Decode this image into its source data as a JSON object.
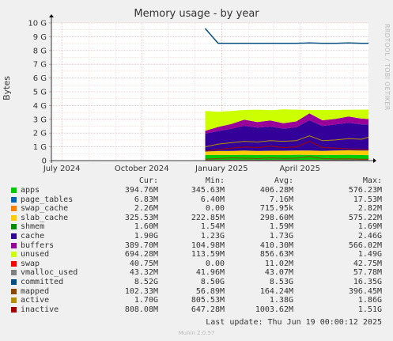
{
  "header": {
    "title": "Memory usage - by year",
    "sidelabel": "RRDTOOL / TOBI OETIKER",
    "ylabel": "Bytes"
  },
  "legend_headers": {
    "cur": "Cur:",
    "min": "Min:",
    "avg": "Avg:",
    "max": "Max:"
  },
  "legend": [
    {
      "name": "apps",
      "color": "#00cc00",
      "cur": "394.76M",
      "min": "345.63M",
      "avg": "406.28M",
      "max": "576.23M"
    },
    {
      "name": "page_tables",
      "color": "#0066b3",
      "cur": "6.83M",
      "min": "6.40M",
      "avg": "7.16M",
      "max": "17.53M"
    },
    {
      "name": "swap_cache",
      "color": "#ff8000",
      "cur": "2.26M",
      "min": "0.00",
      "avg": "715.95k",
      "max": "2.82M"
    },
    {
      "name": "slab_cache",
      "color": "#ffcc00",
      "cur": "325.53M",
      "min": "222.85M",
      "avg": "298.60M",
      "max": "575.22M"
    },
    {
      "name": "shmem",
      "color": "#008f00",
      "cur": "1.60M",
      "min": "1.54M",
      "avg": "1.59M",
      "max": "1.69M"
    },
    {
      "name": "cache",
      "color": "#330099",
      "cur": "1.90G",
      "min": "1.23G",
      "avg": "1.73G",
      "max": "2.46G"
    },
    {
      "name": "buffers",
      "color": "#990099",
      "cur": "389.70M",
      "min": "104.98M",
      "avg": "410.30M",
      "max": "566.02M"
    },
    {
      "name": "unused",
      "color": "#ccff00",
      "cur": "694.28M",
      "min": "113.59M",
      "avg": "856.63M",
      "max": "1.49G"
    },
    {
      "name": "swap",
      "color": "#ff0000",
      "cur": "40.75M",
      "min": "0.00",
      "avg": "11.02M",
      "max": "42.75M"
    },
    {
      "name": "vmalloc_used",
      "color": "#808080",
      "cur": "43.32M",
      "min": "41.96M",
      "avg": "43.07M",
      "max": "57.78M"
    },
    {
      "name": "committed",
      "color": "#004d80",
      "cur": "8.52G",
      "min": "8.50G",
      "avg": "8.53G",
      "max": "16.35G"
    },
    {
      "name": "mapped",
      "color": "#8c4600",
      "cur": "102.33M",
      "min": "56.89M",
      "avg": "164.24M",
      "max": "396.45M"
    },
    {
      "name": "active",
      "color": "#b38f00",
      "cur": "1.70G",
      "min": "805.53M",
      "avg": "1.38G",
      "max": "1.86G"
    },
    {
      "name": "inactive",
      "color": "#a60000",
      "cur": "808.08M",
      "min": "647.28M",
      "avg": "1003.62M",
      "max": "1.51G"
    }
  ],
  "footer": {
    "last_update": "Last update: Thu Jun 19 00:00:12 2025",
    "version": "Munin 2.0.57"
  },
  "chart_data": {
    "type": "area",
    "title": "Memory usage - by year",
    "ylabel": "Bytes",
    "xlim": [
      "2024-06-19",
      "2025-06-19"
    ],
    "ylim": [
      0,
      10
    ],
    "yunit": "G",
    "y_ticks": [
      {
        "value": 0,
        "label": "0"
      },
      {
        "value": 1,
        "label": "1 G"
      },
      {
        "value": 2,
        "label": "2 G"
      },
      {
        "value": 3,
        "label": "3 G"
      },
      {
        "value": 4,
        "label": "4 G"
      },
      {
        "value": 5,
        "label": "5 G"
      },
      {
        "value": 6,
        "label": "6 G"
      },
      {
        "value": 7,
        "label": "7 G"
      },
      {
        "value": 8,
        "label": "8 G"
      },
      {
        "value": 9,
        "label": "9 G"
      },
      {
        "value": 10,
        "label": "10 G"
      }
    ],
    "x_ticks": [
      {
        "date": "2024-07-01",
        "label": "July 2024"
      },
      {
        "date": "2024-10-01",
        "label": "October 2024"
      },
      {
        "date": "2025-01-01",
        "label": "January 2025"
      },
      {
        "date": "2025-04-01",
        "label": "April 2025"
      }
    ],
    "grid": true,
    "x": [
      "2024-12-13",
      "2024-12-28",
      "2025-01-12",
      "2025-01-27",
      "2025-02-11",
      "2025-02-26",
      "2025-03-13",
      "2025-03-28",
      "2025-04-12",
      "2025-04-27",
      "2025-05-12",
      "2025-05-27",
      "2025-06-11",
      "2025-06-19"
    ],
    "stacked_series": [
      {
        "name": "apps",
        "color": "#00cc00",
        "values": [
          0.4,
          0.41,
          0.4,
          0.42,
          0.4,
          0.41,
          0.4,
          0.42,
          0.41,
          0.4,
          0.41,
          0.42,
          0.4,
          0.39
        ]
      },
      {
        "name": "page_tables",
        "color": "#0066b3",
        "values": [
          0.007,
          0.007,
          0.007,
          0.007,
          0.007,
          0.007,
          0.007,
          0.007,
          0.007,
          0.007,
          0.007,
          0.007,
          0.007,
          0.007
        ]
      },
      {
        "name": "swap_cache",
        "color": "#ff8000",
        "values": [
          0,
          0,
          0,
          0,
          0,
          0,
          0.001,
          0.001,
          0.001,
          0.001,
          0.002,
          0.002,
          0.002,
          0.002
        ]
      },
      {
        "name": "slab_cache",
        "color": "#ffcc00",
        "values": [
          0.25,
          0.28,
          0.3,
          0.3,
          0.29,
          0.3,
          0.31,
          0.3,
          0.31,
          0.3,
          0.31,
          0.32,
          0.32,
          0.33
        ]
      },
      {
        "name": "shmem",
        "color": "#008f00",
        "values": [
          0.002,
          0.002,
          0.002,
          0.002,
          0.002,
          0.002,
          0.002,
          0.002,
          0.002,
          0.002,
          0.002,
          0.002,
          0.002,
          0.002
        ]
      },
      {
        "name": "cache",
        "color": "#330099",
        "values": [
          1.3,
          1.45,
          1.6,
          1.8,
          1.7,
          1.75,
          1.6,
          1.7,
          2.2,
          1.8,
          1.9,
          2.0,
          1.9,
          1.9
        ]
      },
      {
        "name": "buffers",
        "color": "#990099",
        "values": [
          0.2,
          0.3,
          0.35,
          0.45,
          0.4,
          0.45,
          0.4,
          0.42,
          0.5,
          0.42,
          0.4,
          0.45,
          0.42,
          0.39
        ]
      },
      {
        "name": "unused",
        "color": "#ccff00",
        "values": [
          1.45,
          1.1,
          0.95,
          0.7,
          0.9,
          0.75,
          1.0,
          0.85,
          0.25,
          0.75,
          0.65,
          0.5,
          0.65,
          0.69
        ]
      }
    ],
    "line_series": [
      {
        "name": "swap",
        "color": "#ff0000",
        "values": [
          0,
          0,
          0.02,
          0.02,
          0.02,
          0.02,
          0.02,
          0.02,
          0.02,
          0.03,
          0.03,
          0.04,
          0.04,
          0.04
        ]
      },
      {
        "name": "vmalloc_used",
        "color": "#808080",
        "values": [
          0.043,
          0.043,
          0.043,
          0.043,
          0.043,
          0.043,
          0.043,
          0.043,
          0.043,
          0.043,
          0.043,
          0.043,
          0.043,
          0.043
        ]
      },
      {
        "name": "committed",
        "color": "#004d80",
        "values": [
          9.6,
          8.52,
          8.52,
          8.52,
          8.52,
          8.52,
          8.52,
          8.52,
          8.55,
          8.52,
          8.52,
          8.55,
          8.52,
          8.52
        ]
      },
      {
        "name": "mapped",
        "color": "#8c4600",
        "values": [
          0.1,
          0.15,
          0.2,
          0.18,
          0.15,
          0.2,
          0.16,
          0.18,
          0.3,
          0.15,
          0.12,
          0.14,
          0.1,
          0.1
        ]
      },
      {
        "name": "active",
        "color": "#b38f00",
        "values": [
          1.0,
          1.2,
          1.3,
          1.4,
          1.35,
          1.45,
          1.4,
          1.45,
          1.8,
          1.45,
          1.5,
          1.6,
          1.55,
          1.7
        ]
      },
      {
        "name": "inactive",
        "color": "#a60000",
        "values": [
          0.7,
          0.8,
          0.9,
          1.0,
          0.95,
          1.05,
          0.95,
          1.0,
          1.4,
          0.95,
          0.9,
          0.85,
          0.82,
          0.81
        ]
      }
    ]
  }
}
